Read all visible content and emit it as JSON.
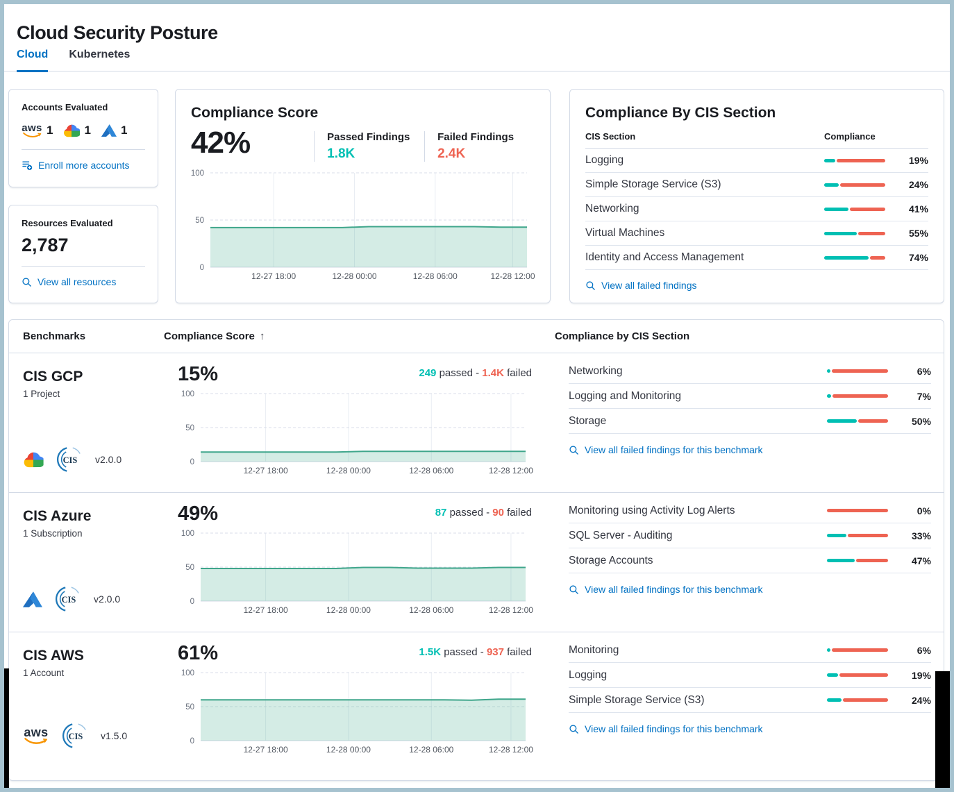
{
  "header": {
    "title": "Cloud Security Posture"
  },
  "tabs": [
    {
      "label": "Cloud",
      "active": true
    },
    {
      "label": "Kubernetes",
      "active": false
    }
  ],
  "accounts_card": {
    "title": "Accounts Evaluated",
    "providers": [
      {
        "name": "aws",
        "count": "1"
      },
      {
        "name": "gcp",
        "count": "1"
      },
      {
        "name": "azure",
        "count": "1"
      }
    ],
    "link": "Enroll more accounts"
  },
  "resources_card": {
    "title": "Resources Evaluated",
    "value": "2,787",
    "link": "View all resources"
  },
  "score_card": {
    "title": "Compliance Score",
    "score": "42%",
    "passed_label": "Passed Findings",
    "passed_value": "1.8K",
    "failed_label": "Failed Findings",
    "failed_value": "2.4K"
  },
  "cis_card": {
    "title": "Compliance By CIS Section",
    "col_section": "CIS Section",
    "col_compliance": "Compliance",
    "rows": [
      {
        "label": "Logging",
        "pct": 19,
        "pct_label": "19%"
      },
      {
        "label": "Simple Storage Service (S3)",
        "pct": 24,
        "pct_label": "24%"
      },
      {
        "label": "Networking",
        "pct": 41,
        "pct_label": "41%"
      },
      {
        "label": "Virtual Machines",
        "pct": 55,
        "pct_label": "55%"
      },
      {
        "label": "Identity and Access Management",
        "pct": 74,
        "pct_label": "74%"
      }
    ],
    "link": "View all failed findings"
  },
  "benchmarks": {
    "col_benchmarks": "Benchmarks",
    "col_score": "Compliance Score",
    "sort_arrow": "↑",
    "col_sections": "Compliance by CIS Section",
    "passed_word": "passed",
    "separator": "-",
    "failed_word": "failed",
    "link": "View all failed findings for this benchmark",
    "rows": [
      {
        "name": "CIS GCP",
        "scope": "1 Project",
        "provider": "gcp",
        "version": "v2.0.0",
        "score": "15%",
        "passed": "249",
        "failed": "1.4K",
        "sections": [
          {
            "label": "Networking",
            "pct": 6,
            "pct_label": "6%"
          },
          {
            "label": "Logging and Monitoring",
            "pct": 7,
            "pct_label": "7%"
          },
          {
            "label": "Storage",
            "pct": 50,
            "pct_label": "50%"
          }
        ]
      },
      {
        "name": "CIS Azure",
        "scope": "1 Subscription",
        "provider": "azure",
        "version": "v2.0.0",
        "score": "49%",
        "passed": "87",
        "failed": "90",
        "sections": [
          {
            "label": "Monitoring using Activity Log Alerts",
            "pct": 0,
            "pct_label": "0%"
          },
          {
            "label": "SQL Server - Auditing",
            "pct": 33,
            "pct_label": "33%"
          },
          {
            "label": "Storage Accounts",
            "pct": 47,
            "pct_label": "47%"
          }
        ]
      },
      {
        "name": "CIS AWS",
        "scope": "1 Account",
        "provider": "aws",
        "version": "v1.5.0",
        "score": "61%",
        "passed": "1.5K",
        "failed": "937",
        "sections": [
          {
            "label": "Monitoring",
            "pct": 6,
            "pct_label": "6%"
          },
          {
            "label": "Logging",
            "pct": 19,
            "pct_label": "19%"
          },
          {
            "label": "Simple Storage Service (S3)",
            "pct": 24,
            "pct_label": "24%"
          }
        ]
      }
    ]
  },
  "chart_data": [
    {
      "id": "overall-compliance-trend",
      "type": "area",
      "series": [
        {
          "name": "Compliance Score",
          "values": [
            42,
            42,
            42,
            42,
            42,
            42,
            43,
            43,
            43,
            43,
            43,
            42.5,
            42.5
          ]
        }
      ],
      "x_ticks": [
        "12-27 18:00",
        "12-28 00:00",
        "12-28 06:00",
        "12-28 12:00"
      ],
      "yticks": [
        0,
        50,
        100
      ],
      "ylim": [
        0,
        100
      ],
      "grid": true,
      "legend": false
    },
    {
      "id": "cis-gcp-trend",
      "type": "area",
      "series": [
        {
          "name": "CIS GCP Compliance",
          "values": [
            14,
            14,
            14,
            14,
            14,
            14,
            15,
            15,
            15,
            15,
            15,
            15,
            15
          ]
        }
      ],
      "x_ticks": [
        "12-27 18:00",
        "12-28 00:00",
        "12-28 06:00",
        "12-28 12:00"
      ],
      "yticks": [
        0,
        50,
        100
      ],
      "ylim": [
        0,
        100
      ],
      "grid": true,
      "legend": false
    },
    {
      "id": "cis-azure-trend",
      "type": "area",
      "series": [
        {
          "name": "CIS Azure Compliance",
          "values": [
            48,
            48,
            48,
            48,
            48,
            48,
            49.5,
            49.5,
            48.5,
            48.5,
            48.5,
            49.5,
            49.5
          ]
        }
      ],
      "x_ticks": [
        "12-27 18:00",
        "12-28 00:00",
        "12-28 06:00",
        "12-28 12:00"
      ],
      "yticks": [
        0,
        50,
        100
      ],
      "ylim": [
        0,
        100
      ],
      "grid": true,
      "legend": false
    },
    {
      "id": "cis-aws-trend",
      "type": "area",
      "series": [
        {
          "name": "CIS AWS Compliance",
          "values": [
            60,
            60,
            60,
            60,
            60,
            60,
            60,
            60,
            60,
            60,
            59.5,
            61,
            61
          ]
        }
      ],
      "x_ticks": [
        "12-27 18:00",
        "12-28 00:00",
        "12-28 06:00",
        "12-28 12:00"
      ],
      "yticks": [
        0,
        50,
        100
      ],
      "ylim": [
        0,
        100
      ],
      "grid": true,
      "legend": false
    }
  ],
  "colors": {
    "accent_blue": "#0071C3",
    "teal": "#00BFB3",
    "red": "#EE6352",
    "chart_line": "#3FA68B",
    "border": "#D3DAE6"
  }
}
